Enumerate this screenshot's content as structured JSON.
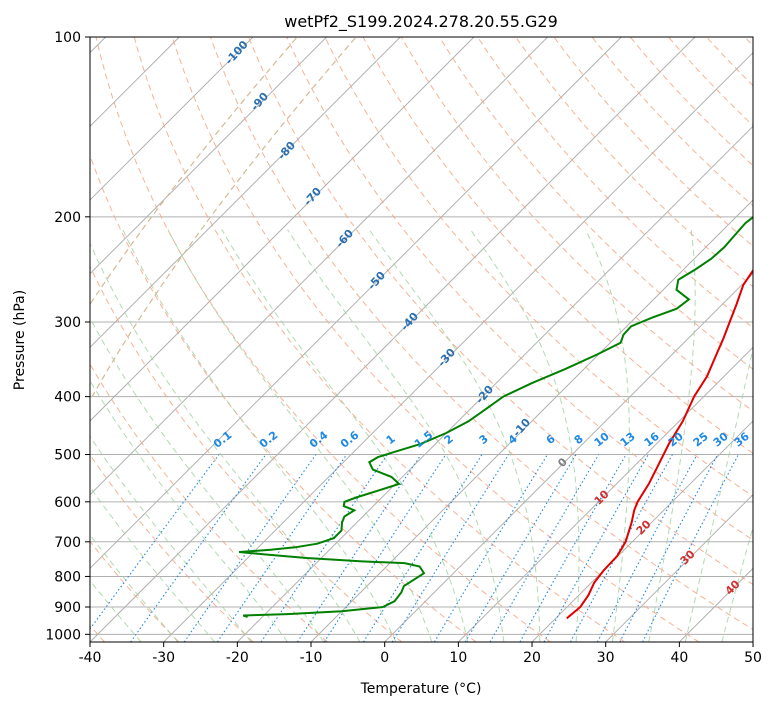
{
  "chart_data": {
    "type": "skew-t",
    "title": "wetPf2_S199.2024.278.20.55.G29",
    "xlabel": "Temperature (°C)",
    "ylabel": "Pressure (hPa)",
    "xlim": [
      -40,
      50
    ],
    "ylim": [
      1030,
      100
    ],
    "x_ticks": [
      -40,
      -30,
      -20,
      -10,
      0,
      10,
      20,
      30,
      40,
      50
    ],
    "y_ticks": [
      1000,
      900,
      800,
      700,
      600,
      500,
      400,
      300,
      200,
      100
    ],
    "grid": true,
    "series": [
      {
        "color": "#e00000",
        "points": [
          [
            940,
            21.5
          ],
          [
            900,
            21.8
          ],
          [
            860,
            21.3
          ],
          [
            820,
            20.4
          ],
          [
            780,
            20.0
          ],
          [
            740,
            19.9
          ],
          [
            700,
            19.1
          ],
          [
            650,
            17.3
          ],
          [
            620,
            16.0
          ],
          [
            600,
            15.3
          ],
          [
            560,
            14.4
          ],
          [
            520,
            13.1
          ],
          [
            480,
            11.7
          ],
          [
            440,
            10.5
          ],
          [
            400,
            8.7
          ],
          [
            370,
            7.7
          ],
          [
            340,
            6.0
          ],
          [
            320,
            4.8
          ],
          [
            300,
            3.4
          ],
          [
            280,
            1.9
          ],
          [
            260,
            0.2
          ],
          [
            240,
            -0.7
          ],
          [
            220,
            -1.8
          ],
          [
            200,
            -2.3
          ],
          [
            185,
            -1.4
          ],
          [
            170,
            0.4
          ],
          [
            160,
            2.4
          ],
          [
            150,
            4.4
          ],
          [
            140,
            5.8
          ],
          [
            130,
            7.3
          ],
          [
            120,
            8.8
          ],
          [
            112,
            10.6
          ],
          [
            105,
            11.8
          ],
          [
            100,
            12.4
          ]
        ]
      },
      {
        "color": "#008000",
        "points": [
          [
            935,
            -22.0
          ],
          [
            930,
            -22.8
          ],
          [
            925,
            -17.0
          ],
          [
            915,
            -10.0
          ],
          [
            900,
            -5.0
          ],
          [
            880,
            -4.2
          ],
          [
            850,
            -4.5
          ],
          [
            830,
            -5.0
          ],
          [
            810,
            -4.5
          ],
          [
            790,
            -4.0
          ],
          [
            770,
            -5.5
          ],
          [
            760,
            -8.0
          ],
          [
            755,
            -14.0
          ],
          [
            745,
            -22.0
          ],
          [
            735,
            -28.0
          ],
          [
            728,
            -32.0
          ],
          [
            722,
            -28.0
          ],
          [
            715,
            -25.0
          ],
          [
            705,
            -22.5
          ],
          [
            690,
            -21.0
          ],
          [
            670,
            -21.0
          ],
          [
            650,
            -22.0
          ],
          [
            635,
            -22.5
          ],
          [
            620,
            -22.0
          ],
          [
            610,
            -24.0
          ],
          [
            600,
            -24.5
          ],
          [
            590,
            -23.5
          ],
          [
            575,
            -21.5
          ],
          [
            560,
            -19.5
          ],
          [
            545,
            -21.5
          ],
          [
            530,
            -25.0
          ],
          [
            515,
            -26.5
          ],
          [
            505,
            -26.0
          ],
          [
            495,
            -24.5
          ],
          [
            480,
            -22.0
          ],
          [
            460,
            -20.0
          ],
          [
            440,
            -18.6
          ],
          [
            420,
            -17.9
          ],
          [
            400,
            -17.2
          ],
          [
            380,
            -15.2
          ],
          [
            360,
            -12.6
          ],
          [
            340,
            -10.2
          ],
          [
            325,
            -8.6
          ],
          [
            315,
            -9.3
          ],
          [
            305,
            -9.4
          ],
          [
            295,
            -7.7
          ],
          [
            285,
            -5.6
          ],
          [
            275,
            -5.2
          ],
          [
            265,
            -8.2
          ],
          [
            255,
            -9.3
          ],
          [
            245,
            -8.4
          ],
          [
            235,
            -7.7
          ],
          [
            225,
            -7.5
          ],
          [
            215,
            -7.7
          ],
          [
            205,
            -7.9
          ],
          [
            195,
            -7.4
          ],
          [
            180,
            -6.6
          ],
          [
            165,
            -6.0
          ],
          [
            150,
            -6.1
          ],
          [
            140,
            -5.8
          ],
          [
            130,
            -4.2
          ],
          [
            120,
            -3.2
          ],
          [
            110,
            -1.3
          ],
          [
            100,
            0.5
          ]
        ]
      }
    ],
    "dry_adiabat_labels": [
      "-100",
      "-90",
      "-80",
      "-70",
      "-60",
      "-50",
      "-40",
      "-30",
      "-20",
      "-10"
    ],
    "mixing_ratio_labels": [
      "0.1",
      "0.2",
      "0.4",
      "0.6",
      "1",
      "1.5",
      "2",
      "3",
      "4",
      "6",
      "8",
      "10",
      "13",
      "16",
      "20",
      "25",
      "30",
      "36"
    ],
    "moist_adiabat_labels": [
      "0",
      "10",
      "20",
      "30",
      "40"
    ]
  }
}
